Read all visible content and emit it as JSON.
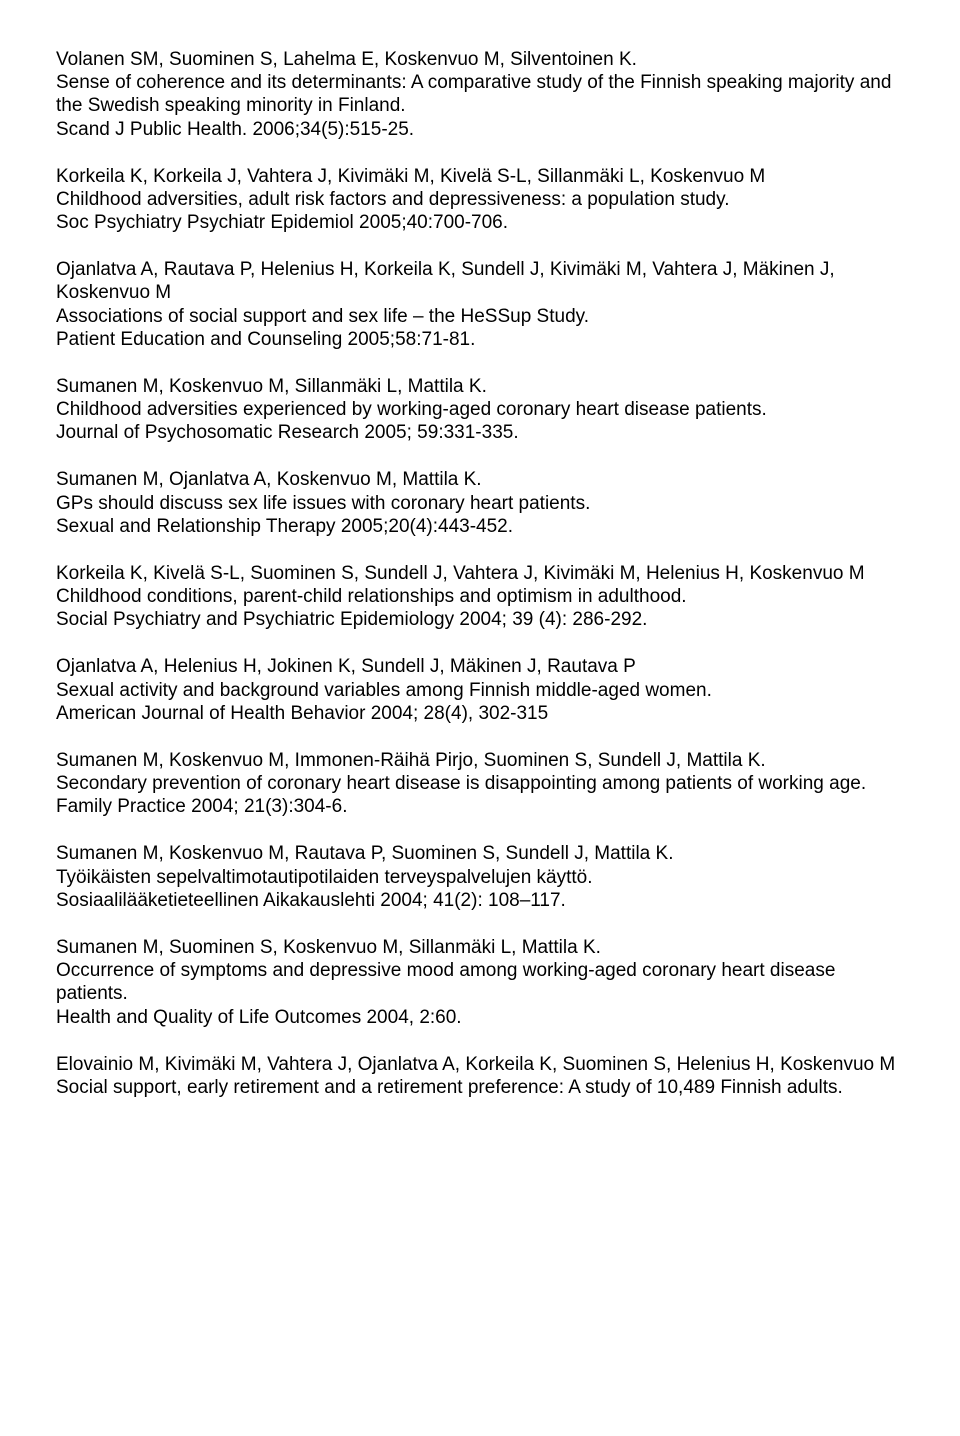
{
  "entries": [
    {
      "authors": "Volanen SM, Suominen S, Lahelma E, Koskenvuo M, Silventoinen K.",
      "title": "Sense of coherence and its determinants: A comparative study of the Finnish speaking majority and the Swedish speaking minority in Finland.",
      "journal": "Scand J Public Health. 2006;34(5):515-25."
    },
    {
      "authors": "Korkeila K, Korkeila J, Vahtera J, Kivimäki M, Kivelä S-L, Sillanmäki L, Koskenvuo M",
      "title": "Childhood adversities, adult risk factors and depressiveness: a population study.",
      "journal": "Soc Psychiatry Psychiatr Epidemiol 2005;40:700-706."
    },
    {
      "authors": "Ojanlatva A, Rautava P, Helenius H, Korkeila K, Sundell J, Kivimäki M, Vahtera J, Mäkinen J, Koskenvuo M",
      "title": "Associations of social support and sex life – the HeSSup Study.",
      "journal": "Patient Education and Counseling 2005;58:71-81."
    },
    {
      "authors": "Sumanen M, Koskenvuo M, Sillanmäki L, Mattila K.",
      "title": "Childhood adversities experienced by working-aged coronary heart disease patients.",
      "journal": "Journal of Psychosomatic Research 2005; 59:331-335."
    },
    {
      "authors": "Sumanen M, Ojanlatva A, Koskenvuo M, Mattila K.",
      "title": "GPs should discuss sex life issues with coronary heart patients.",
      "journal": "Sexual and Relationship Therapy 2005;20(4):443-452."
    },
    {
      "authors": "Korkeila K, Kivelä S-L, Suominen S, Sundell J, Vahtera J, Kivimäki M, Helenius H, Koskenvuo M",
      "title": "Childhood conditions, parent-child relationships and optimism in adulthood.",
      "journal": "Social Psychiatry and Psychiatric Epidemiology 2004; 39 (4): 286-292."
    },
    {
      "authors": "Ojanlatva A, Helenius H, Jokinen K, Sundell J, Mäkinen J, Rautava P",
      "title": "Sexual activity and background variables among Finnish middle-aged women.",
      "journal": "American Journal of Health Behavior 2004; 28(4), 302-315"
    },
    {
      "authors": "Sumanen M, Koskenvuo M, Immonen-Räihä Pirjo, Suominen S, Sundell J, Mattila K.",
      "title": "Secondary prevention of coronary heart disease is disappointing among patients of working age.",
      "journal": "Family Practice 2004; 21(3):304-6."
    },
    {
      "authors": "Sumanen M, Koskenvuo M, Rautava P, Suominen S, Sundell J, Mattila K.",
      "title": "Työikäisten sepelvaltimotautipotilaiden terveyspalvelujen käyttö.",
      "journal": "Sosiaalilääketieteellinen Aikakauslehti 2004; 41(2): 108–117."
    },
    {
      "authors": "Sumanen M, Suominen S, Koskenvuo M, Sillanmäki L, Mattila K.",
      "title": "Occurrence of symptoms and depressive mood among working-aged coronary heart disease patients.",
      "journal": "Health and Quality of Life Outcomes 2004, 2:60."
    },
    {
      "authors": "Elovainio M, Kivimäki M, Vahtera J, Ojanlatva A, Korkeila K, Suominen S, Helenius H, Koskenvuo M",
      "title": "Social support, early retirement and a retirement preference: A study of 10,489 Finnish adults.",
      "journal": ""
    }
  ]
}
